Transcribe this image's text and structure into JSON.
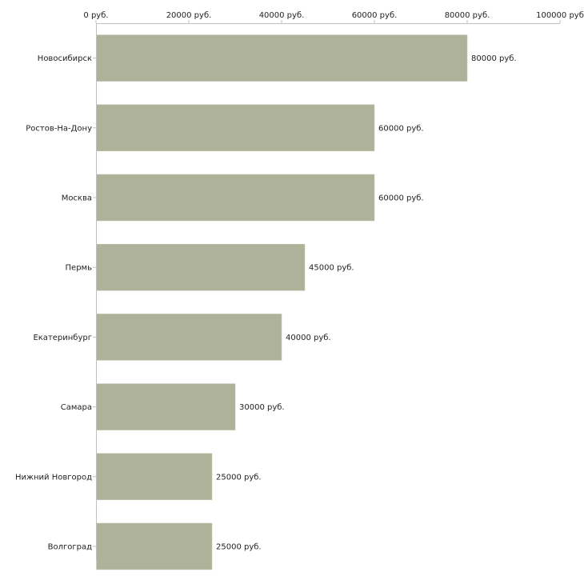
{
  "chart_data": {
    "type": "bar",
    "orientation": "horizontal",
    "categories": [
      "Новосибирск",
      "Ростов-На-Дону",
      "Москва",
      "Пермь",
      "Екатеринбург",
      "Самара",
      "Нижний Новгород",
      "Волгоград"
    ],
    "values": [
      80000,
      60000,
      60000,
      45000,
      40000,
      30000,
      25000,
      25000
    ],
    "value_labels": [
      "80000 руб.",
      "60000 руб.",
      "60000 руб.",
      "45000 руб.",
      "40000 руб.",
      "30000 руб.",
      "25000 руб.",
      "25000 руб."
    ],
    "x_ticks": [
      0,
      20000,
      40000,
      60000,
      80000,
      100000
    ],
    "x_tick_labels": [
      "0 руб.",
      "20000 руб.",
      "40000 руб.",
      "60000 руб.",
      "80000 руб.",
      "100000 руб"
    ],
    "xlim": [
      0,
      100000
    ],
    "axis_position": "top",
    "title": "",
    "xlabel": "",
    "ylabel": "",
    "grid": false,
    "legend": "none",
    "colors": {
      "bar": "#adb298",
      "bar_edge": "#c4c8b4",
      "axis": "#c0c0c0",
      "text": "#222222"
    }
  }
}
